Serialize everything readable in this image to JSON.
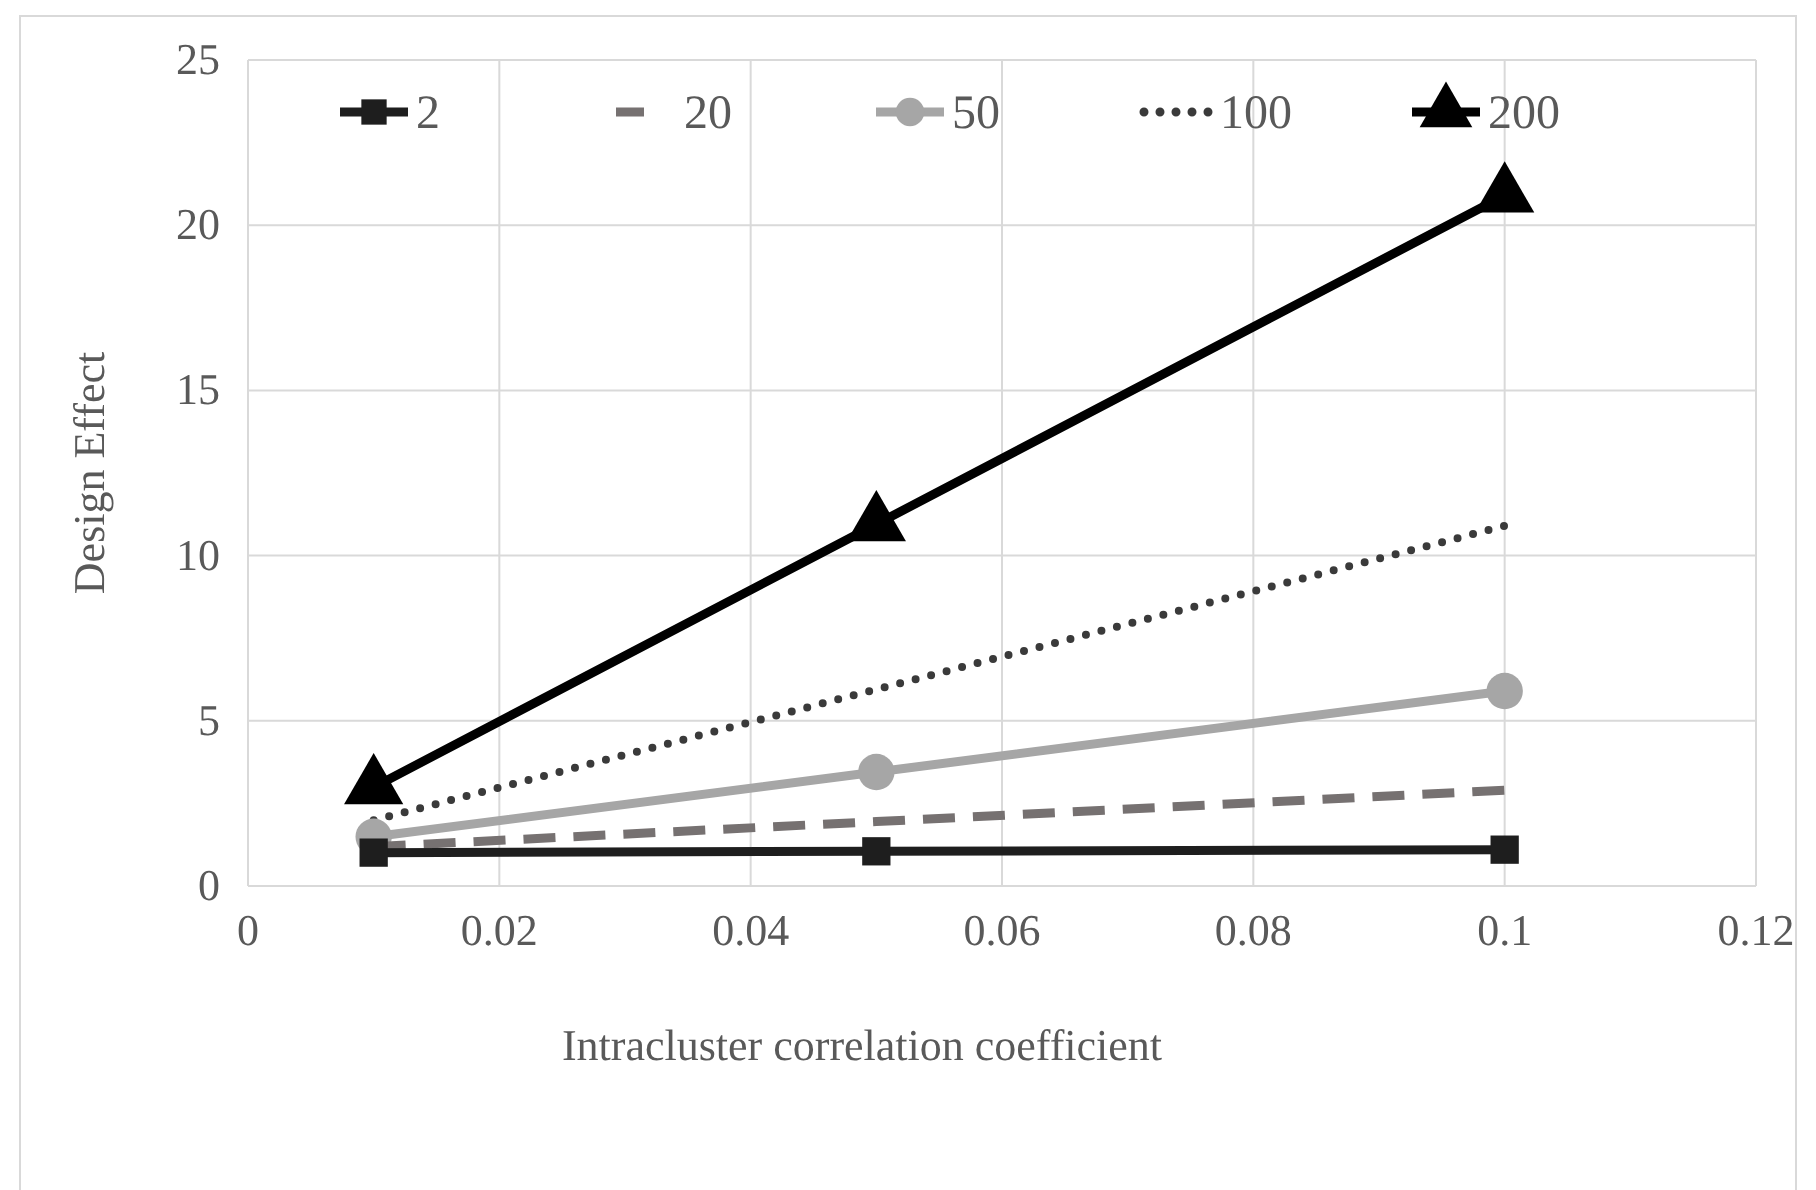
{
  "chart_data": {
    "type": "line",
    "xlabel": "Intracluster correlation coefficient",
    "ylabel": "Design Effect",
    "x": [
      0.01,
      0.05,
      0.1
    ],
    "xlim": [
      0,
      0.12
    ],
    "xticks": [
      0,
      0.02,
      0.04,
      0.06,
      0.08,
      0.1,
      0.12
    ],
    "ylim": [
      0,
      25
    ],
    "yticks": [
      0,
      5,
      10,
      15,
      20,
      25
    ],
    "grid": true,
    "legend": "top",
    "series": [
      {
        "name": "2",
        "color": "#1e1e1e",
        "values": [
          1.01,
          1.05,
          1.1
        ],
        "marker": "square",
        "line_style": "solid"
      },
      {
        "name": "20",
        "color": "#767171",
        "values": [
          1.19,
          1.95,
          2.9
        ],
        "marker": "none",
        "line_style": "dashed"
      },
      {
        "name": "50",
        "color": "#a6a6a6",
        "values": [
          1.49,
          3.45,
          5.9
        ],
        "marker": "circle",
        "line_style": "solid"
      },
      {
        "name": "100",
        "color": "#3a3a3a",
        "values": [
          1.99,
          5.95,
          10.9
        ],
        "marker": "none",
        "line_style": "dotted"
      },
      {
        "name": "200",
        "color": "#000000",
        "values": [
          2.99,
          10.95,
          20.9
        ],
        "marker": "triangle",
        "line_style": "solid"
      }
    ]
  }
}
